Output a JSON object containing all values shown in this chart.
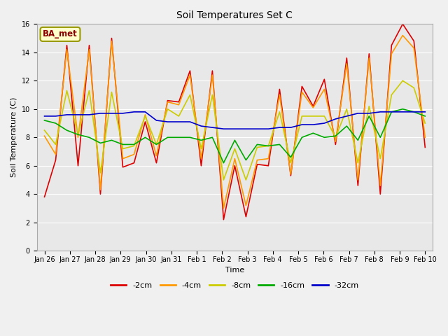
{
  "title": "Soil Temperatures Set C",
  "xlabel": "Time",
  "ylabel": "Soil Temperature (C)",
  "ylim": [
    0,
    16
  ],
  "yticks": [
    0,
    2,
    4,
    6,
    8,
    10,
    12,
    14,
    16
  ],
  "xlabels": [
    "Jan 26",
    "Jan 27",
    "Jan 28",
    "Jan 29",
    "Jan 30",
    "Jan 31",
    "Feb 1",
    "Feb 2",
    "Feb 3",
    "Feb 4",
    "Feb 5",
    "Feb 6",
    "Feb 7",
    "Feb 8",
    "Feb 9",
    "Feb 10"
  ],
  "annotation": "BA_met",
  "colors": {
    "-2cm": "#dd0000",
    "-4cm": "#ff9900",
    "-8cm": "#cccc00",
    "-16cm": "#00aa00",
    "-32cm": "#0000cc"
  },
  "legend_labels": [
    "-2cm",
    "-4cm",
    "-8cm",
    "-16cm",
    "-32cm"
  ],
  "series": {
    "-2cm": [
      3.8,
      6.4,
      14.5,
      6.0,
      14.5,
      4.0,
      15.0,
      5.9,
      6.2,
      9.1,
      6.2,
      10.6,
      10.5,
      12.7,
      6.0,
      12.7,
      2.2,
      6.0,
      2.4,
      6.1,
      6.0,
      11.4,
      5.3,
      11.6,
      10.2,
      12.1,
      7.5,
      13.6,
      4.6,
      13.9,
      4.0,
      14.5,
      16.0,
      14.8,
      7.3
    ],
    "-4cm": [
      8.1,
      6.8,
      14.2,
      8.0,
      14.2,
      4.3,
      14.8,
      6.5,
      6.8,
      9.6,
      6.7,
      10.5,
      10.3,
      12.4,
      6.5,
      12.4,
      3.0,
      6.5,
      3.2,
      6.4,
      6.5,
      11.0,
      5.4,
      11.2,
      10.1,
      11.4,
      7.7,
      13.2,
      5.0,
      13.6,
      4.6,
      13.9,
      15.2,
      14.3,
      8.0
    ],
    "-8cm": [
      8.5,
      7.5,
      11.3,
      8.2,
      11.3,
      5.5,
      11.2,
      7.2,
      7.4,
      9.5,
      7.5,
      10.0,
      9.5,
      11.0,
      7.2,
      11.0,
      5.0,
      7.2,
      5.0,
      7.3,
      7.4,
      9.8,
      6.2,
      9.5,
      9.5,
      9.5,
      8.0,
      10.0,
      6.2,
      10.2,
      6.5,
      11.0,
      12.0,
      11.5,
      9.0
    ],
    "-16cm": [
      9.2,
      9.0,
      8.5,
      8.2,
      8.0,
      7.6,
      7.8,
      7.5,
      7.5,
      8.0,
      7.5,
      8.0,
      8.0,
      8.0,
      7.8,
      8.0,
      6.2,
      7.8,
      6.4,
      7.5,
      7.4,
      7.5,
      6.6,
      8.0,
      8.3,
      8.0,
      8.1,
      8.8,
      7.8,
      9.5,
      8.0,
      9.8,
      10.0,
      9.8,
      9.5
    ],
    "-32cm": [
      9.5,
      9.5,
      9.6,
      9.6,
      9.6,
      9.7,
      9.7,
      9.7,
      9.8,
      9.8,
      9.2,
      9.1,
      9.1,
      9.1,
      8.8,
      8.7,
      8.6,
      8.6,
      8.6,
      8.6,
      8.6,
      8.7,
      8.7,
      8.9,
      8.9,
      9.0,
      9.3,
      9.5,
      9.7,
      9.7,
      9.8,
      9.8,
      9.8,
      9.8,
      9.8
    ]
  },
  "fig_bg": "#f0f0f0",
  "ax_bg": "#e8e8e8",
  "grid_color": "#ffffff",
  "title_fontsize": 10,
  "tick_fontsize": 7,
  "label_fontsize": 8,
  "legend_fontsize": 8,
  "linewidth": 1.2
}
